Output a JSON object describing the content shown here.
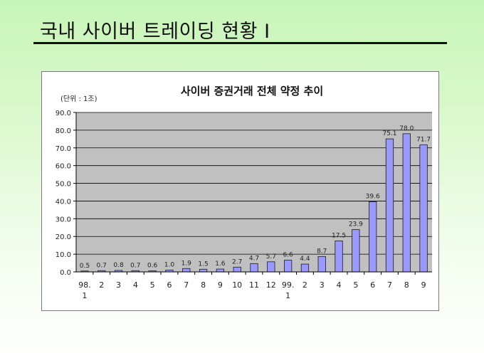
{
  "slide": {
    "title": "국내 사이버 트레이딩 현황 I"
  },
  "chart_data": {
    "type": "bar",
    "title": "사이버 증권거래 전체 약정 추이",
    "unit_note": "(단위 : 1조)",
    "xlabel": "",
    "ylabel": "",
    "ylim": [
      0,
      90
    ],
    "y_ticks": [
      "0.0",
      "10.0",
      "20.0",
      "30.0",
      "40.0",
      "50.0",
      "60.0",
      "70.0",
      "80.0",
      "90.0"
    ],
    "grid": true,
    "legend": "none",
    "categories": [
      {
        "top": "98.",
        "bottom": "1"
      },
      {
        "top": "2",
        "bottom": ""
      },
      {
        "top": "3",
        "bottom": ""
      },
      {
        "top": "4",
        "bottom": ""
      },
      {
        "top": "5",
        "bottom": ""
      },
      {
        "top": "6",
        "bottom": ""
      },
      {
        "top": "7",
        "bottom": ""
      },
      {
        "top": "8",
        "bottom": ""
      },
      {
        "top": "9",
        "bottom": ""
      },
      {
        "top": "10",
        "bottom": ""
      },
      {
        "top": "11",
        "bottom": ""
      },
      {
        "top": "12",
        "bottom": ""
      },
      {
        "top": "99.",
        "bottom": "1"
      },
      {
        "top": "2",
        "bottom": ""
      },
      {
        "top": "3",
        "bottom": ""
      },
      {
        "top": "4",
        "bottom": ""
      },
      {
        "top": "5",
        "bottom": ""
      },
      {
        "top": "6",
        "bottom": ""
      },
      {
        "top": "7",
        "bottom": ""
      },
      {
        "top": "8",
        "bottom": ""
      },
      {
        "top": "9",
        "bottom": ""
      }
    ],
    "values": [
      0.5,
      0.7,
      0.8,
      0.7,
      0.6,
      1.0,
      1.9,
      1.5,
      1.6,
      2.7,
      4.7,
      5.7,
      6.6,
      4.4,
      8.7,
      17.5,
      23.9,
      39.6,
      75.1,
      78.0,
      71.7
    ],
    "value_labels": [
      "0.5",
      "0.7",
      "0.8",
      "0.7",
      "0.6",
      "1.0",
      "1.9",
      "1.5",
      "1.6",
      "2.7",
      "4.7",
      "5.7",
      "6.6",
      "4.4",
      "8.7",
      "17.5",
      "23.9",
      "39.6",
      "75.1",
      "78.0",
      "71.7"
    ],
    "colors": {
      "bar_fill": "#9999ff",
      "bar_stroke": "#1a1a1a",
      "plot_bg": "#c0c0c0",
      "grid": "#000000"
    }
  }
}
